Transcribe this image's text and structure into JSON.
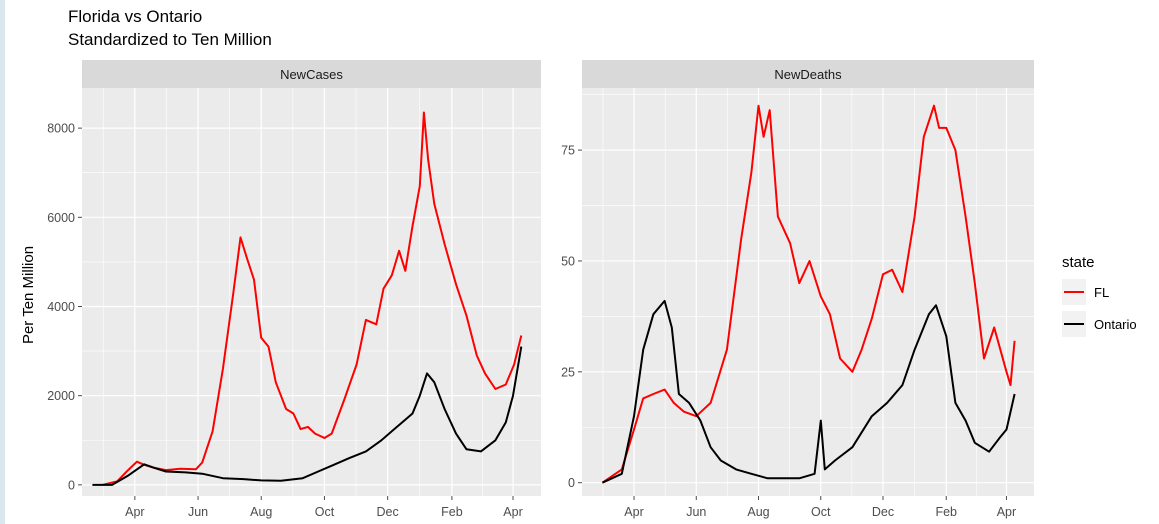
{
  "chart_data": {
    "type": "line",
    "title": "Florida vs Ontario",
    "subtitle": "Standardized to Ten Million",
    "ylabel": "Per Ten Million",
    "xlabel": "",
    "grid": true,
    "legend": {
      "title": "state",
      "placement": "right",
      "entries": [
        {
          "label": "FL",
          "color": "#ff0000"
        },
        {
          "label": "Ontario",
          "color": "#000000"
        }
      ]
    },
    "x_ticks": [
      {
        "date": "2020-04-01",
        "label": "Apr"
      },
      {
        "date": "2020-06-01",
        "label": "Jun"
      },
      {
        "date": "2020-08-01",
        "label": "Aug"
      },
      {
        "date": "2020-10-01",
        "label": "Oct"
      },
      {
        "date": "2020-12-01",
        "label": "Dec"
      },
      {
        "date": "2021-02-01",
        "label": "Feb"
      },
      {
        "date": "2021-04-01",
        "label": "Apr"
      }
    ],
    "xlim": [
      "2020-02-10",
      "2021-04-28"
    ],
    "panels": [
      {
        "strip": "NewCases",
        "ylim": [
          -250,
          8900
        ],
        "y_ticks": [
          0,
          2000,
          4000,
          6000,
          8000
        ],
        "series": [
          {
            "name": "FL",
            "color": "#ff0000",
            "points": [
              [
                "2020-03-01",
                0
              ],
              [
                "2020-03-15",
                80
              ],
              [
                "2020-03-25",
                320
              ],
              [
                "2020-04-03",
                520
              ],
              [
                "2020-04-10",
                450
              ],
              [
                "2020-04-20",
                380
              ],
              [
                "2020-05-01",
                330
              ],
              [
                "2020-05-15",
                360
              ],
              [
                "2020-05-30",
                350
              ],
              [
                "2020-06-05",
                500
              ],
              [
                "2020-06-15",
                1200
              ],
              [
                "2020-06-25",
                2600
              ],
              [
                "2020-07-05",
                4300
              ],
              [
                "2020-07-12",
                5550
              ],
              [
                "2020-07-18",
                5100
              ],
              [
                "2020-07-25",
                4600
              ],
              [
                "2020-08-01",
                3300
              ],
              [
                "2020-08-08",
                3100
              ],
              [
                "2020-08-15",
                2300
              ],
              [
                "2020-08-25",
                1700
              ],
              [
                "2020-09-01",
                1600
              ],
              [
                "2020-09-08",
                1250
              ],
              [
                "2020-09-15",
                1300
              ],
              [
                "2020-09-22",
                1150
              ],
              [
                "2020-10-01",
                1050
              ],
              [
                "2020-10-08",
                1150
              ],
              [
                "2020-10-20",
                1900
              ],
              [
                "2020-11-01",
                2700
              ],
              [
                "2020-11-10",
                3700
              ],
              [
                "2020-11-20",
                3600
              ],
              [
                "2020-11-27",
                4400
              ],
              [
                "2020-12-05",
                4700
              ],
              [
                "2020-12-12",
                5250
              ],
              [
                "2020-12-18",
                4800
              ],
              [
                "2020-12-25",
                5800
              ],
              [
                "2021-01-01",
                6700
              ],
              [
                "2021-01-05",
                8350
              ],
              [
                "2021-01-09",
                7300
              ],
              [
                "2021-01-15",
                6300
              ],
              [
                "2021-01-25",
                5400
              ],
              [
                "2021-02-05",
                4500
              ],
              [
                "2021-02-15",
                3800
              ],
              [
                "2021-02-25",
                2900
              ],
              [
                "2021-03-05",
                2500
              ],
              [
                "2021-03-15",
                2150
              ],
              [
                "2021-03-25",
                2250
              ],
              [
                "2021-04-02",
                2700
              ],
              [
                "2021-04-09",
                3350
              ]
            ]
          },
          {
            "name": "Ontario",
            "color": "#000000",
            "points": [
              [
                "2020-02-20",
                0
              ],
              [
                "2020-03-10",
                0
              ],
              [
                "2020-03-25",
                200
              ],
              [
                "2020-04-10",
                460
              ],
              [
                "2020-04-20",
                380
              ],
              [
                "2020-05-01",
                300
              ],
              [
                "2020-05-20",
                280
              ],
              [
                "2020-06-05",
                250
              ],
              [
                "2020-06-25",
                150
              ],
              [
                "2020-07-15",
                130
              ],
              [
                "2020-08-01",
                100
              ],
              [
                "2020-08-20",
                90
              ],
              [
                "2020-09-10",
                150
              ],
              [
                "2020-09-25",
                300
              ],
              [
                "2020-10-10",
                450
              ],
              [
                "2020-10-25",
                600
              ],
              [
                "2020-11-10",
                750
              ],
              [
                "2020-11-25",
                1000
              ],
              [
                "2020-12-05",
                1200
              ],
              [
                "2020-12-15",
                1400
              ],
              [
                "2020-12-25",
                1600
              ],
              [
                "2021-01-01",
                2000
              ],
              [
                "2021-01-08",
                2500
              ],
              [
                "2021-01-15",
                2300
              ],
              [
                "2021-01-25",
                1700
              ],
              [
                "2021-02-05",
                1150
              ],
              [
                "2021-02-15",
                800
              ],
              [
                "2021-03-01",
                750
              ],
              [
                "2021-03-15",
                1000
              ],
              [
                "2021-03-25",
                1400
              ],
              [
                "2021-04-01",
                2000
              ],
              [
                "2021-04-09",
                3100
              ]
            ]
          }
        ]
      },
      {
        "strip": "NewDeaths",
        "ylim": [
          -3,
          89
        ],
        "y_ticks": [
          0,
          25,
          50,
          75
        ],
        "series": [
          {
            "name": "FL",
            "color": "#ff0000",
            "points": [
              [
                "2020-03-01",
                0
              ],
              [
                "2020-03-20",
                3
              ],
              [
                "2020-04-01",
                12
              ],
              [
                "2020-04-10",
                19
              ],
              [
                "2020-04-20",
                20
              ],
              [
                "2020-05-01",
                21
              ],
              [
                "2020-05-10",
                18
              ],
              [
                "2020-05-20",
                16
              ],
              [
                "2020-06-01",
                15
              ],
              [
                "2020-06-15",
                18
              ],
              [
                "2020-07-01",
                30
              ],
              [
                "2020-07-15",
                55
              ],
              [
                "2020-07-25",
                70
              ],
              [
                "2020-08-01",
                85
              ],
              [
                "2020-08-06",
                78
              ],
              [
                "2020-08-12",
                84
              ],
              [
                "2020-08-20",
                60
              ],
              [
                "2020-09-01",
                54
              ],
              [
                "2020-09-10",
                45
              ],
              [
                "2020-09-20",
                50
              ],
              [
                "2020-10-01",
                42
              ],
              [
                "2020-10-10",
                38
              ],
              [
                "2020-10-20",
                28
              ],
              [
                "2020-11-01",
                25
              ],
              [
                "2020-11-10",
                30
              ],
              [
                "2020-11-20",
                37
              ],
              [
                "2020-12-01",
                47
              ],
              [
                "2020-12-10",
                48
              ],
              [
                "2020-12-20",
                43
              ],
              [
                "2021-01-01",
                60
              ],
              [
                "2021-01-10",
                78
              ],
              [
                "2021-01-20",
                85
              ],
              [
                "2021-01-25",
                80
              ],
              [
                "2021-02-01",
                80
              ],
              [
                "2021-02-10",
                75
              ],
              [
                "2021-02-20",
                60
              ],
              [
                "2021-03-01",
                45
              ],
              [
                "2021-03-10",
                28
              ],
              [
                "2021-03-20",
                35
              ],
              [
                "2021-04-01",
                25
              ],
              [
                "2021-04-05",
                22
              ],
              [
                "2021-04-09",
                32
              ]
            ]
          },
          {
            "name": "Ontario",
            "color": "#000000",
            "points": [
              [
                "2020-03-01",
                0
              ],
              [
                "2020-03-20",
                2
              ],
              [
                "2020-04-01",
                15
              ],
              [
                "2020-04-10",
                30
              ],
              [
                "2020-04-20",
                38
              ],
              [
                "2020-05-01",
                41
              ],
              [
                "2020-05-08",
                35
              ],
              [
                "2020-05-15",
                20
              ],
              [
                "2020-05-25",
                18
              ],
              [
                "2020-06-05",
                14
              ],
              [
                "2020-06-15",
                8
              ],
              [
                "2020-06-25",
                5
              ],
              [
                "2020-07-10",
                3
              ],
              [
                "2020-07-25",
                2
              ],
              [
                "2020-08-10",
                1
              ],
              [
                "2020-08-25",
                1
              ],
              [
                "2020-09-10",
                1
              ],
              [
                "2020-09-25",
                2
              ],
              [
                "2020-10-01",
                14
              ],
              [
                "2020-10-05",
                3
              ],
              [
                "2020-10-15",
                5
              ],
              [
                "2020-11-01",
                8
              ],
              [
                "2020-11-20",
                15
              ],
              [
                "2020-12-05",
                18
              ],
              [
                "2020-12-20",
                22
              ],
              [
                "2021-01-01",
                30
              ],
              [
                "2021-01-15",
                38
              ],
              [
                "2021-01-22",
                40
              ],
              [
                "2021-02-01",
                33
              ],
              [
                "2021-02-10",
                18
              ],
              [
                "2021-02-20",
                14
              ],
              [
                "2021-03-01",
                9
              ],
              [
                "2021-03-15",
                7
              ],
              [
                "2021-03-25",
                10
              ],
              [
                "2021-04-01",
                12
              ],
              [
                "2021-04-09",
                20
              ]
            ]
          }
        ]
      }
    ]
  }
}
